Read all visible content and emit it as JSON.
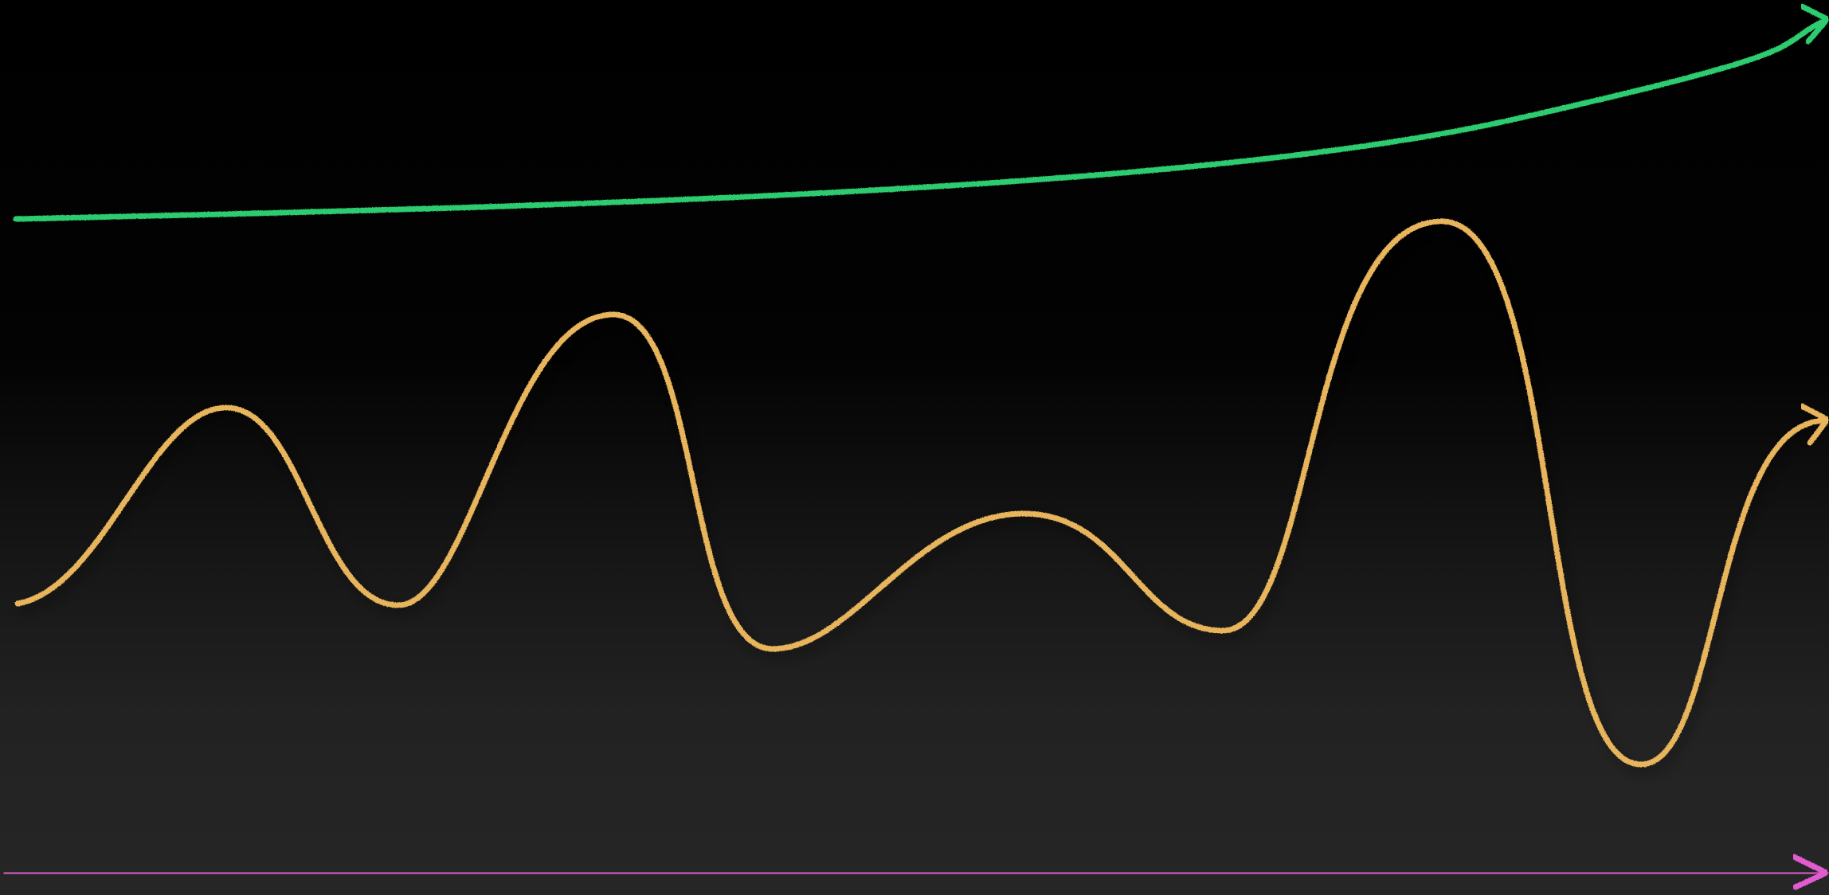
{
  "colors": {
    "background": "#000000",
    "growth_curve": "#2ecc71",
    "wave_curve": "#e8b55c",
    "baseline_arrow": "#e25bcf"
  },
  "icons": {
    "growth_arrowhead": "arrowhead-icon",
    "wave_arrowhead": "arrowhead-icon",
    "baseline_arrowhead": "arrowhead-icon"
  }
}
